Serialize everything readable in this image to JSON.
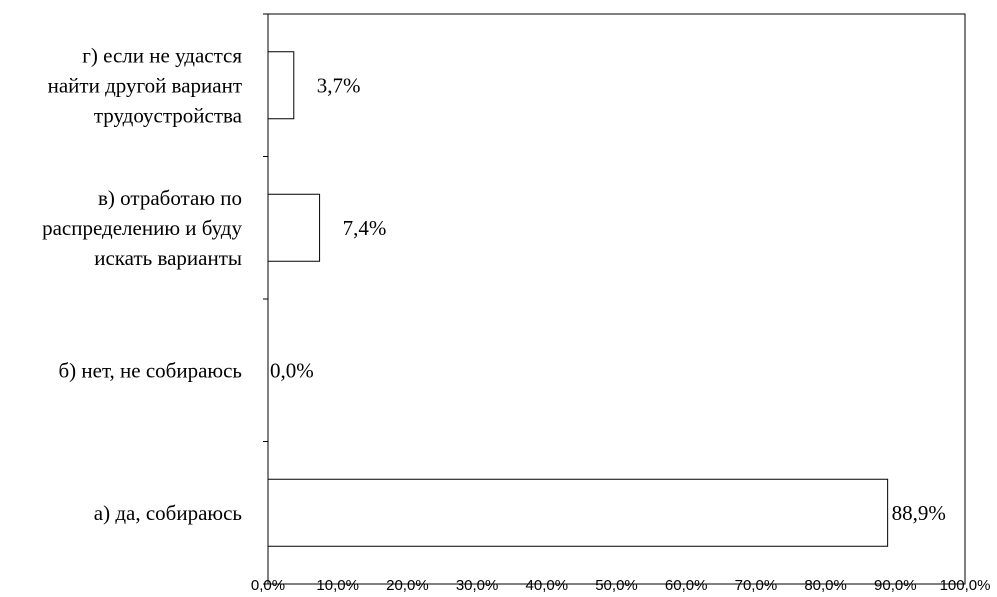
{
  "chart_data": {
    "type": "bar",
    "orientation": "horizontal",
    "categories": [
      "а) да, собираюсь",
      "б) нет, не собираюсь",
      "в) отработаю по распределению и буду искать варианты",
      "г) если не удастся найти другой вариант трудоустройства"
    ],
    "category_label_lines": [
      [
        "а) да, собираюсь"
      ],
      [
        "б) нет, не собираюсь"
      ],
      [
        "в) отработаю по",
        "распределению и буду",
        "искать варианты"
      ],
      [
        "г) если не удастся",
        "найти другой вариант",
        "трудоустройства"
      ]
    ],
    "values": [
      88.9,
      0.0,
      7.4,
      3.7
    ],
    "data_labels": [
      "88,9%",
      "0,0%",
      "7,4%",
      "3,7%"
    ],
    "title": "",
    "xlabel": "",
    "ylabel": "",
    "xlim": [
      0,
      100
    ],
    "x_tick_labels": [
      "0,0%",
      "10,0%",
      "20,0%",
      "30,0%",
      "40,0%",
      "50,0%",
      "60,0%",
      "70,0%",
      "80,0%",
      "90,0%",
      "100,0%"
    ],
    "grid": false,
    "legend": "none",
    "bar_fill": "#ffffff",
    "bar_stroke": "#000000"
  }
}
